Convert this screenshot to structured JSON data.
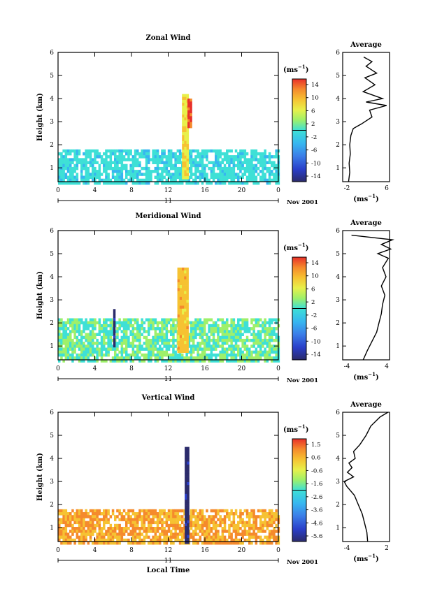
{
  "common": {
    "xlabel": "Local Time",
    "ylabel": "Height (km)",
    "date_label": "Nov 2001",
    "day_label": "11",
    "unit_label": "(ms",
    "unit_exp": "−1",
    "avg_title": "Average",
    "avg_xlabel": "(ms",
    "avg_xlabel_exp": "−1",
    "x_ticks": [
      "0",
      "4",
      "8",
      "12",
      "16",
      "20",
      "0"
    ],
    "y_ticks": [
      "1",
      "2",
      "3",
      "4",
      "5",
      "6"
    ]
  },
  "chart_data": [
    {
      "type": "heatmap",
      "title": "Zonal Wind",
      "xlabel": "Local Time",
      "ylabel": "Height (km)",
      "x_range_hours": [
        0,
        24
      ],
      "y_range_km": [
        0.4,
        6
      ],
      "colorbar": {
        "ticks": [
          "14",
          "10",
          "6",
          "2",
          "-2",
          "-6",
          "-10",
          "-14"
        ],
        "range": [
          -16,
          16
        ]
      },
      "features": [
        {
          "x_hours": [
            0,
            24
          ],
          "y_km": [
            0.4,
            1.8
          ],
          "value_ms": -2,
          "note": "widespread weak easterly band"
        },
        {
          "x_hours": [
            13.5,
            14.2
          ],
          "y_km": [
            0.6,
            4.2
          ],
          "value_ms": 6,
          "note": "convective column"
        },
        {
          "x_hours": [
            14.1,
            14.4
          ],
          "y_km": [
            2.8,
            4.0
          ],
          "value_ms": 14,
          "note": "strong westerly core"
        }
      ],
      "average_profile": {
        "title": "Average",
        "xlim": [
          -2,
          6
        ],
        "x_ticks": [
          "-2",
          "6"
        ],
        "height_km": [
          0.4,
          0.8,
          1.2,
          1.6,
          2.0,
          2.4,
          2.7,
          2.9,
          3.2,
          3.5,
          3.7,
          3.85,
          4.0,
          4.3,
          4.6,
          4.9,
          5.1,
          5.4,
          5.6,
          5.8
        ],
        "value_ms": [
          -1.0,
          -0.8,
          -0.9,
          -0.7,
          -0.8,
          -0.6,
          -0.2,
          1.2,
          3.0,
          2.6,
          5.5,
          2.0,
          4.8,
          1.5,
          3.5,
          1.8,
          3.8,
          2.0,
          3.0,
          1.6
        ]
      }
    },
    {
      "type": "heatmap",
      "title": "Meridional Wind",
      "xlabel": "Local Time",
      "ylabel": "Height (km)",
      "x_range_hours": [
        0,
        24
      ],
      "y_range_km": [
        0.4,
        6
      ],
      "colorbar": {
        "ticks": [
          "14",
          "10",
          "6",
          "2",
          "-2",
          "-6",
          "-10",
          "-14"
        ],
        "range": [
          -16,
          16
        ]
      },
      "features": [
        {
          "x_hours": [
            0,
            24
          ],
          "y_km": [
            0.4,
            2.2
          ],
          "value_ms": 0,
          "note": "weak mixed flow"
        },
        {
          "x_hours": [
            6.0,
            6.2
          ],
          "y_km": [
            1.0,
            2.6
          ],
          "value_ms": -14,
          "note": "strong southward streak"
        },
        {
          "x_hours": [
            13.0,
            14.2
          ],
          "y_km": [
            0.8,
            4.4
          ],
          "value_ms": 8,
          "note": "convective column"
        }
      ],
      "average_profile": {
        "title": "Average",
        "xlim": [
          -4,
          4
        ],
        "x_ticks": [
          "-4",
          "4"
        ],
        "height_km": [
          0.4,
          0.8,
          1.2,
          1.6,
          2.0,
          2.4,
          2.8,
          3.2,
          3.6,
          4.0,
          4.4,
          4.8,
          5.0,
          5.2,
          5.4,
          5.6,
          5.8
        ],
        "value_ms": [
          -0.5,
          0.2,
          1.0,
          1.8,
          2.2,
          2.6,
          2.8,
          3.2,
          2.6,
          3.4,
          2.8,
          3.8,
          2.0,
          4.2,
          2.6,
          4.5,
          -2.5
        ]
      }
    },
    {
      "type": "heatmap",
      "title": "Vertical Wind",
      "xlabel": "Local Time",
      "ylabel": "Height (km)",
      "x_range_hours": [
        0,
        24
      ],
      "y_range_km": [
        0.4,
        6
      ],
      "colorbar": {
        "ticks": [
          "1.5",
          "0.6",
          "-0.6",
          "-1.6",
          "-2.6",
          "-3.6",
          "-4.6",
          "-5.6"
        ],
        "range": [
          -6,
          2
        ]
      },
      "features": [
        {
          "x_hours": [
            0,
            24
          ],
          "y_km": [
            0.4,
            1.8
          ],
          "value_ms": 0.4,
          "note": "weak upward motion"
        },
        {
          "x_hours": [
            13.8,
            14.1
          ],
          "y_km": [
            0.4,
            4.5
          ],
          "value_ms": -5.6,
          "note": "strong downdraft column"
        }
      ],
      "average_profile": {
        "title": "Average",
        "xlim": [
          -4,
          2
        ],
        "x_ticks": [
          "-4",
          "2"
        ],
        "height_km": [
          0.4,
          0.8,
          1.2,
          1.6,
          2.0,
          2.4,
          2.8,
          3.0,
          3.2,
          3.4,
          3.6,
          3.8,
          4.0,
          4.3,
          4.6,
          5.0,
          5.4,
          5.8,
          6.0
        ],
        "value_ms": [
          -0.8,
          -0.9,
          -1.2,
          -1.5,
          -2.0,
          -2.5,
          -3.5,
          -3.8,
          -2.6,
          -3.4,
          -2.8,
          -3.2,
          -2.4,
          -2.6,
          -1.8,
          -1.0,
          -0.4,
          0.8,
          1.8
        ]
      }
    }
  ]
}
